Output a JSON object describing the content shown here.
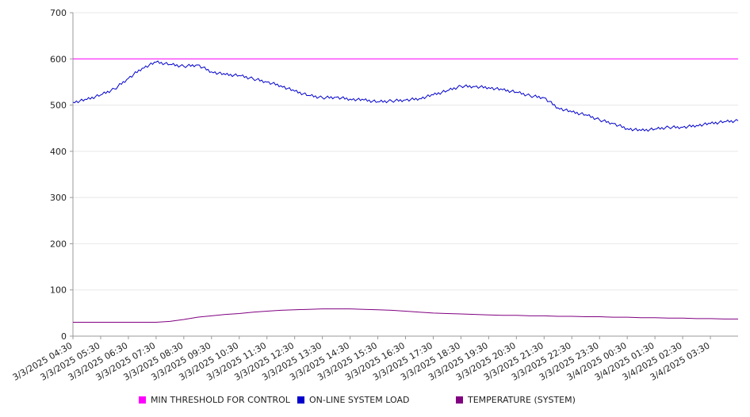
{
  "chart_data": {
    "type": "line",
    "title": "",
    "xlabel": "",
    "ylabel": "",
    "ylim": [
      0,
      700
    ],
    "yticks": [
      0,
      100,
      200,
      300,
      400,
      500,
      600,
      700
    ],
    "grid": true,
    "legend_position": "bottom",
    "x_tick_labels": [
      "3/3/2025 04:30",
      "3/3/2025 05:30",
      "3/3/2025 06:30",
      "3/3/2025 07:30",
      "3/3/2025 08:30",
      "3/3/2025 09:30",
      "3/3/2025 10:30",
      "3/3/2025 11:30",
      "3/3/2025 12:30",
      "3/3/2025 13:30",
      "3/3/2025 14:30",
      "3/3/2025 15:30",
      "3/3/2025 16:30",
      "3/3/2025 17:30",
      "3/3/2025 18:30",
      "3/3/2025 19:30",
      "3/3/2025 20:30",
      "3/3/2025 21:30",
      "3/3/2025 22:30",
      "3/3/2025 23:30",
      "3/4/2025 00:30",
      "3/4/2025 01:30",
      "3/4/2025 02:30",
      "3/4/2025 03:30"
    ],
    "x": [
      "3/3/2025 04:30",
      "3/3/2025 05:00",
      "3/3/2025 05:30",
      "3/3/2025 06:00",
      "3/3/2025 06:30",
      "3/3/2025 07:00",
      "3/3/2025 07:30",
      "3/3/2025 08:00",
      "3/3/2025 08:30",
      "3/3/2025 09:00",
      "3/3/2025 09:30",
      "3/3/2025 10:00",
      "3/3/2025 10:30",
      "3/3/2025 11:00",
      "3/3/2025 11:30",
      "3/3/2025 12:00",
      "3/3/2025 12:30",
      "3/3/2025 13:00",
      "3/3/2025 13:30",
      "3/3/2025 14:00",
      "3/3/2025 14:30",
      "3/3/2025 15:00",
      "3/3/2025 15:30",
      "3/3/2025 16:00",
      "3/3/2025 16:30",
      "3/3/2025 17:00",
      "3/3/2025 17:30",
      "3/3/2025 18:00",
      "3/3/2025 18:30",
      "3/3/2025 19:00",
      "3/3/2025 19:30",
      "3/3/2025 20:00",
      "3/3/2025 20:30",
      "3/3/2025 21:00",
      "3/3/2025 21:30",
      "3/3/2025 22:00",
      "3/3/2025 22:30",
      "3/3/2025 23:00",
      "3/3/2025 23:30",
      "3/4/2025 00:00",
      "3/4/2025 00:30",
      "3/4/2025 01:00",
      "3/4/2025 01:30",
      "3/4/2025 02:00",
      "3/4/2025 02:30",
      "3/4/2025 03:00",
      "3/4/2025 03:30",
      "3/4/2025 04:00",
      "3/4/2025 04:30"
    ],
    "series": [
      {
        "name": "MIN THRESHOLD FOR CONTROL",
        "color": "#ff00ff",
        "values": [
          600,
          600,
          600,
          600,
          600,
          600,
          600,
          600,
          600,
          600,
          600,
          600,
          600,
          600,
          600,
          600,
          600,
          600,
          600,
          600,
          600,
          600,
          600,
          600,
          600,
          600,
          600,
          600,
          600,
          600,
          600,
          600,
          600,
          600,
          600,
          600,
          600,
          600,
          600,
          600,
          600,
          600,
          600,
          600,
          600,
          600,
          600,
          600,
          600
        ]
      },
      {
        "name": "ON-LINE SYSTEM LOAD",
        "color": "#0000cc",
        "values": [
          506,
          512,
          522,
          535,
          558,
          580,
          593,
          588,
          584,
          587,
          572,
          566,
          564,
          557,
          550,
          542,
          530,
          521,
          516,
          517,
          513,
          511,
          507,
          509,
          511,
          514,
          522,
          531,
          541,
          540,
          538,
          533,
          528,
          520,
          516,
          494,
          485,
          479,
          468,
          460,
          449,
          445,
          448,
          452,
          452,
          456,
          460,
          464,
          466
        ]
      },
      {
        "name": "TEMPERATURE (SYSTEM)",
        "color": "#800080",
        "values": [
          30,
          30,
          30,
          30,
          30,
          30,
          30,
          32,
          36,
          41,
          44,
          47,
          49,
          52,
          54,
          56,
          57,
          58,
          59,
          59,
          59,
          58,
          57,
          56,
          54,
          52,
          50,
          49,
          48,
          47,
          46,
          45,
          45,
          44,
          44,
          43,
          43,
          42,
          42,
          41,
          41,
          40,
          40,
          39,
          39,
          38,
          38,
          37,
          37
        ]
      }
    ]
  }
}
